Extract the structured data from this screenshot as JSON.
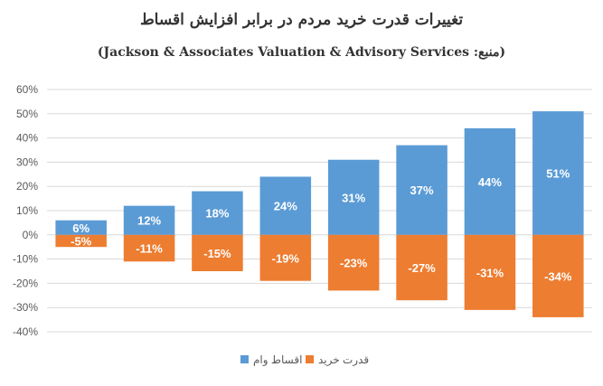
{
  "chart_data": {
    "type": "bar",
    "title": "تغییرات قدرت خرید مردم در برابر افزایش اقساط",
    "subtitle": "(منبع: Jackson & Associates Valuation & Advisory Services)",
    "categories": [
      "",
      "",
      "",
      "",
      "",
      "",
      "",
      ""
    ],
    "series": [
      {
        "name": "اقساط وام",
        "color": "#5B9BD5",
        "values": [
          6,
          12,
          18,
          24,
          31,
          37,
          44,
          51
        ],
        "labels": [
          "6%",
          "12%",
          "18%",
          "24%",
          "31%",
          "37%",
          "44%",
          "51%"
        ]
      },
      {
        "name": "قدرت خرید",
        "color": "#ED7D31",
        "values": [
          -5,
          -11,
          -15,
          -19,
          -23,
          -27,
          -31,
          -34
        ],
        "labels": [
          "-5%",
          "-11%",
          "-15%",
          "-19%",
          "-23%",
          "-27%",
          "-31%",
          "-34%"
        ]
      }
    ],
    "ylim": [
      -40,
      60
    ],
    "yticks": [
      -40,
      -30,
      -20,
      -10,
      0,
      10,
      20,
      30,
      40,
      50,
      60
    ],
    "ytick_labels": [
      "-40%",
      "-30%",
      "-20%",
      "-10%",
      "0%",
      "10%",
      "20%",
      "30%",
      "40%",
      "50%",
      "60%"
    ],
    "stacked": true,
    "grid": true,
    "legend_position": "bottom",
    "xlabel": "",
    "ylabel": ""
  }
}
